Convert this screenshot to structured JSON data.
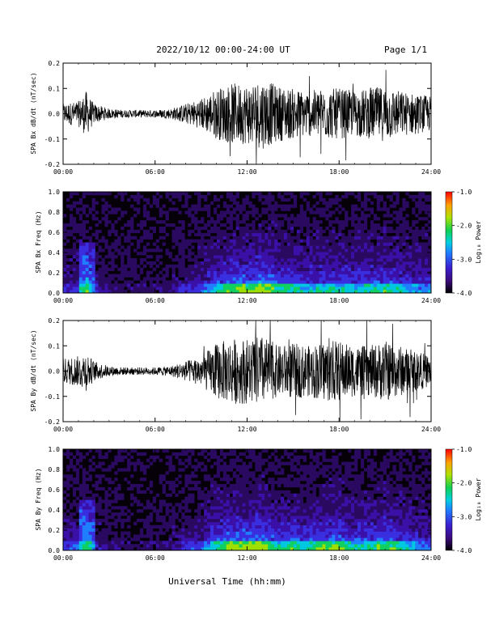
{
  "header": {
    "title": "2022/10/12  00:00-24:00 UT",
    "page": "Page 1/1"
  },
  "footer": {
    "xlabel": "Universal Time (hh:mm)"
  },
  "chart_data": [
    {
      "type": "line",
      "ylabel": "SPA Bx dB/dt (nT/sec)",
      "xlim": [
        0,
        24
      ],
      "ylim": [
        -0.2,
        0.2
      ],
      "xticks": [
        "00:00",
        "06:00",
        "12:00",
        "18:00",
        "24:00"
      ],
      "yticks": [
        "0.2",
        "0.1",
        "0.0",
        "-0.1",
        "-0.2"
      ],
      "envelope": {
        "hours": [
          0,
          1,
          1.5,
          2,
          3,
          4,
          5,
          6,
          7,
          8,
          9,
          10,
          11,
          12,
          13,
          14,
          15,
          16,
          17,
          18,
          19,
          20,
          21,
          22,
          23,
          24
        ],
        "amplitude": [
          0.04,
          0.05,
          0.09,
          0.04,
          0.02,
          0.015,
          0.015,
          0.015,
          0.02,
          0.04,
          0.06,
          0.1,
          0.12,
          0.12,
          0.14,
          0.11,
          0.1,
          0.09,
          0.1,
          0.1,
          0.09,
          0.1,
          0.11,
          0.09,
          0.08,
          0.07
        ]
      }
    },
    {
      "type": "heatmap",
      "ylabel": "SPA Bx Freq (Hz)",
      "xlim": [
        0,
        24
      ],
      "ylim": [
        0,
        1
      ],
      "xticks": [
        "00:00",
        "06:00",
        "12:00",
        "18:00",
        "24:00"
      ],
      "yticks": [
        "1.0",
        "0.8",
        "0.6",
        "0.4",
        "0.2",
        "0.0"
      ],
      "colorbar": {
        "label": "Log₁₀ Power",
        "range": [
          -4.0,
          -1.0
        ],
        "ticks": [
          "-1.0",
          "-2.0",
          "-3.0",
          "-4.0"
        ]
      }
    },
    {
      "type": "line",
      "ylabel": "SPA By dB/dt (nT/sec)",
      "xlim": [
        0,
        24
      ],
      "ylim": [
        -0.2,
        0.2
      ],
      "xticks": [
        "00:00",
        "06:00",
        "12:00",
        "18:00",
        "24:00"
      ],
      "yticks": [
        "0.2",
        "0.1",
        "0.0",
        "-0.1",
        "-0.2"
      ],
      "envelope": {
        "hours": [
          0,
          1,
          1.5,
          2,
          3,
          4,
          5,
          6,
          7,
          8,
          9,
          10,
          11,
          12,
          13,
          14,
          15,
          16,
          17,
          18,
          19,
          20,
          21,
          22,
          23,
          24
        ],
        "amplitude": [
          0.05,
          0.06,
          0.08,
          0.04,
          0.02,
          0.015,
          0.015,
          0.015,
          0.02,
          0.04,
          0.06,
          0.11,
          0.13,
          0.13,
          0.14,
          0.1,
          0.11,
          0.1,
          0.12,
          0.12,
          0.1,
          0.1,
          0.12,
          0.1,
          0.08,
          0.06
        ]
      }
    },
    {
      "type": "heatmap",
      "ylabel": "SPA By Freq (Hz)",
      "xlim": [
        0,
        24
      ],
      "ylim": [
        0,
        1
      ],
      "xticks": [
        "00:00",
        "06:00",
        "12:00",
        "18:00",
        "24:00"
      ],
      "yticks": [
        "1.0",
        "0.8",
        "0.6",
        "0.4",
        "0.2",
        "0.0"
      ],
      "colorbar": {
        "label": "Log₁₀ Power",
        "range": [
          -4.0,
          -1.0
        ],
        "ticks": [
          "-1.0",
          "-2.0",
          "-3.0",
          "-4.0"
        ]
      }
    }
  ]
}
